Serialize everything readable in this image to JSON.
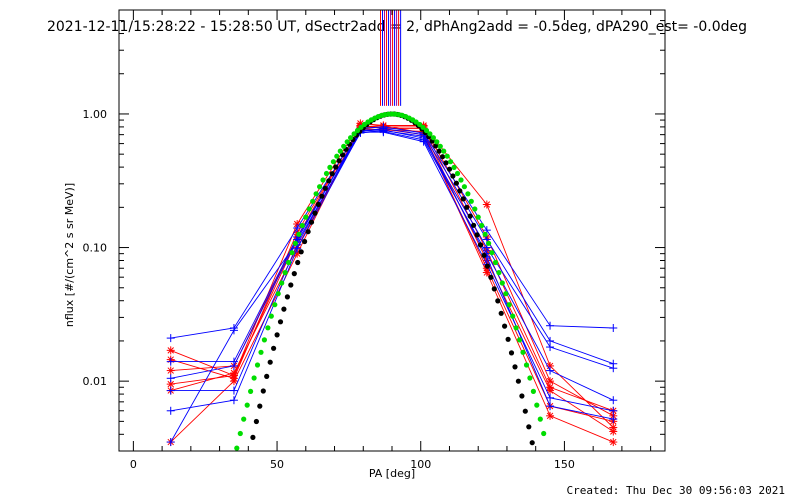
{
  "chart_data": {
    "type": "line",
    "title": "2021-12-11/15:28:22 - 15:28:50 UT, dSectr2add = 2, dPhAng2add = -0.5deg, dPA290_est= -0.0deg",
    "xlabel": "PA [deg]",
    "ylabel": "nflux [#/(cm^2 s sr MeV)]",
    "xlim": [
      -5,
      185
    ],
    "ylim": [
      0.003,
      6.0
    ],
    "yscale": "log",
    "x_ticks": [
      0,
      50,
      100,
      150
    ],
    "y_ticks": [
      0.01,
      0.1,
      1.0
    ],
    "y_tick_labels": [
      "0.01",
      "0.10",
      "1.00"
    ],
    "grid": false,
    "colors": {
      "red_series": "#ff0000",
      "blue_series": "#0000ff",
      "purple_series": "#a000a0",
      "fit_black": "#000000",
      "fit_green": "#00dd00"
    },
    "vertical_lines": {
      "x": [
        86.0,
        86.7,
        87.4,
        88.1,
        88.8,
        89.5,
        90.2,
        90.9,
        91.6,
        92.3,
        93.0
      ],
      "y_low": 1.15
    },
    "series": [
      {
        "color": "red",
        "marker": "star",
        "x": [
          13,
          35,
          57,
          79,
          87,
          101,
          123,
          145,
          167
        ],
        "y": [
          0.017,
          0.011,
          0.15,
          0.85,
          0.82,
          0.82,
          0.21,
          0.013,
          0.0045
        ]
      },
      {
        "color": "red",
        "marker": "star",
        "x": [
          13,
          35,
          57,
          79,
          87,
          101,
          123,
          145,
          167
        ],
        "y": [
          0.0145,
          0.0105,
          0.13,
          0.8,
          0.8,
          0.8,
          0.12,
          0.01,
          0.0055
        ]
      },
      {
        "color": "red",
        "marker": "star",
        "x": [
          13,
          35,
          57,
          79,
          87,
          101,
          123,
          145,
          167
        ],
        "y": [
          0.012,
          0.013,
          0.12,
          0.82,
          0.78,
          0.78,
          0.095,
          0.009,
          0.006
        ]
      },
      {
        "color": "red",
        "marker": "star",
        "x": [
          13,
          35,
          57,
          79,
          87,
          101,
          123,
          145,
          167
        ],
        "y": [
          0.0095,
          0.011,
          0.115,
          0.78,
          0.76,
          0.74,
          0.08,
          0.0085,
          0.0042
        ]
      },
      {
        "color": "red",
        "marker": "star",
        "x": [
          13,
          35,
          57,
          79,
          87,
          101,
          123,
          145,
          167
        ],
        "y": [
          0.0085,
          0.0115,
          0.1,
          0.76,
          0.77,
          0.7,
          0.07,
          0.0065,
          0.005
        ]
      },
      {
        "color": "red",
        "marker": "star",
        "x": [
          13,
          35,
          57,
          79,
          87,
          101,
          123,
          145,
          167
        ],
        "y": [
          0.0035,
          0.01,
          0.09,
          0.8,
          0.82,
          0.72,
          0.065,
          0.0055,
          0.0035
        ]
      },
      {
        "color": "blue",
        "marker": "plus",
        "x": [
          13,
          35,
          57,
          79,
          87,
          101,
          123,
          145,
          167
        ],
        "y": [
          0.021,
          0.025,
          0.14,
          0.78,
          0.8,
          0.72,
          0.135,
          0.026,
          0.025
        ]
      },
      {
        "color": "blue",
        "marker": "plus",
        "x": [
          13,
          35,
          57,
          79,
          87,
          101,
          123,
          145,
          167
        ],
        "y": [
          0.014,
          0.014,
          0.12,
          0.74,
          0.78,
          0.7,
          0.115,
          0.02,
          0.0135
        ]
      },
      {
        "color": "blue",
        "marker": "plus",
        "x": [
          13,
          35,
          57,
          79,
          87,
          101,
          123,
          145,
          167
        ],
        "y": [
          0.0105,
          0.013,
          0.115,
          0.76,
          0.76,
          0.66,
          0.1,
          0.018,
          0.0125
        ]
      },
      {
        "color": "blue",
        "marker": "plus",
        "x": [
          13,
          35,
          57,
          79,
          87,
          101,
          123,
          145,
          167
        ],
        "y": [
          0.0085,
          0.0085,
          0.105,
          0.75,
          0.74,
          0.64,
          0.09,
          0.012,
          0.0072
        ]
      },
      {
        "color": "blue",
        "marker": "plus",
        "x": [
          13,
          35,
          57,
          79,
          87,
          101,
          123,
          145,
          167
        ],
        "y": [
          0.006,
          0.0072,
          0.098,
          0.73,
          0.73,
          0.62,
          0.075,
          0.0075,
          0.006
        ]
      },
      {
        "color": "blue",
        "marker": "plus",
        "x": [
          13,
          35,
          57,
          79,
          87,
          101,
          123,
          145,
          167
        ],
        "y": [
          0.0035,
          0.024,
          0.11,
          0.72,
          0.75,
          0.68,
          0.085,
          0.0065,
          0.0052
        ]
      }
    ],
    "fits": [
      {
        "color": "black",
        "center": 90,
        "peak": 1.0,
        "width": 20.5,
        "x_range": [
          38,
          142
        ]
      },
      {
        "color": "green",
        "center": 90,
        "peak": 1.0,
        "width": 22.5,
        "x_range": [
          36,
          144
        ]
      }
    ],
    "footer": "Created: Thu Dec 30 09:56:03 2021"
  }
}
